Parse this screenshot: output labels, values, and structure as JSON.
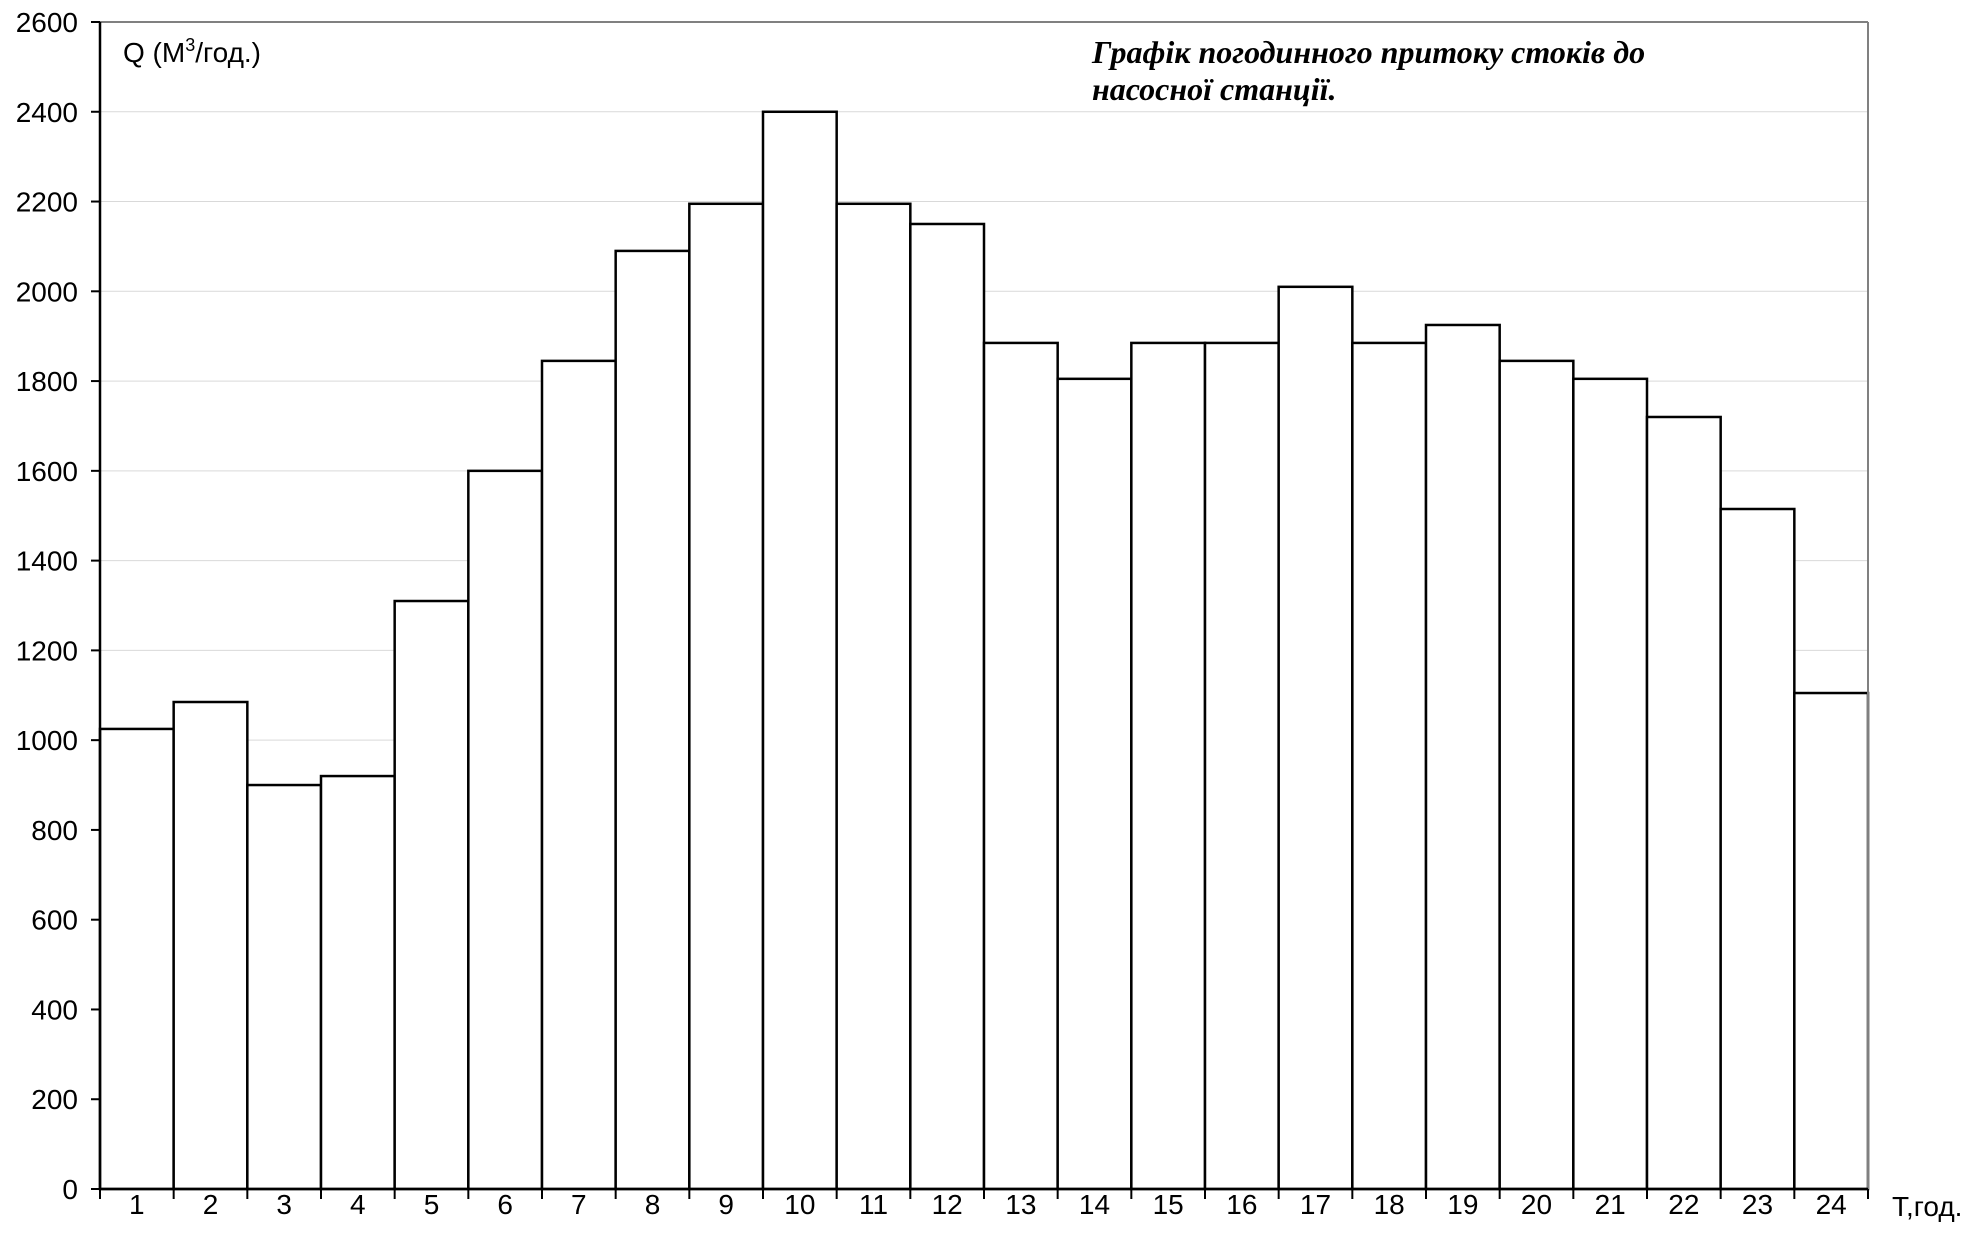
{
  "chart_data": {
    "type": "bar",
    "title_lines": [
      "Графік погодинного притоку стоків до",
      "насосної станції."
    ],
    "ylabel": {
      "main": "Q (М",
      "superscript": "3",
      "tail": "/год.)"
    },
    "xlabel": "Т,год.",
    "ylim": [
      0,
      2600
    ],
    "ytick_step": 200,
    "ytick_labels": [
      "0",
      "200",
      "400",
      "600",
      "800",
      "1000",
      "1200",
      "1400",
      "1600",
      "1800",
      "2000",
      "2200",
      "2400",
      "2600"
    ],
    "categories": [
      "1",
      "2",
      "3",
      "4",
      "5",
      "6",
      "7",
      "8",
      "9",
      "10",
      "11",
      "12",
      "13",
      "14",
      "15",
      "16",
      "17",
      "18",
      "19",
      "20",
      "21",
      "22",
      "23",
      "24"
    ],
    "values": [
      1025,
      1085,
      900,
      920,
      1310,
      1600,
      1845,
      2090,
      2195,
      2400,
      2195,
      2150,
      1885,
      1805,
      1885,
      1885,
      2010,
      1885,
      1925,
      1845,
      1805,
      1720,
      1515,
      1105
    ],
    "grid": true,
    "legend": false,
    "colors": {
      "bar_fill": "#ffffff",
      "bar_stroke": "#000000",
      "grid": "#d9d9d9",
      "axis": "#000000"
    }
  }
}
